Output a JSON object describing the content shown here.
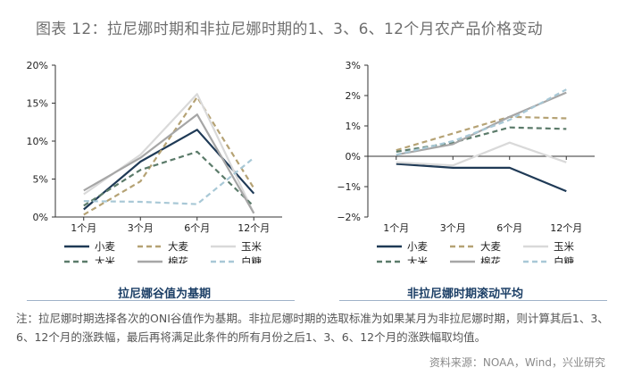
{
  "title": "图表 12：拉尼娜时期和非拉尼娜时期的1、3、6、12个月农产品价格变动",
  "note": "注：拉尼娜时期选择各次的ONI谷值作为基期。非拉尼娜时期的选取标准为如果某月为非拉尼娜时期，则计算其后1、3、6、12个月的涨跌幅，最后再将满足此条件的所有月份之后1、3、6、12个月的涨跌幅取均值。",
  "source": "资料来源：NOAA，Wind，兴业研究",
  "chart_data": [
    {
      "type": "line",
      "title": "拉尼娜谷值为基期",
      "categories": [
        "1个月",
        "3个月",
        "6个月",
        "12个月"
      ],
      "ylim": [
        0,
        20
      ],
      "yticks": [
        0,
        5,
        10,
        15,
        20
      ],
      "ytick_labels": [
        "0%",
        "5%",
        "10%",
        "15%",
        "20%"
      ],
      "legend_position": "bottom",
      "series": [
        {
          "name": "小麦",
          "color": "#1f3a56",
          "dash": "solid",
          "values": [
            1.0,
            7.3,
            11.5,
            3.1
          ]
        },
        {
          "name": "大麦",
          "color": "#b5a274",
          "dash": "dashed",
          "values": [
            0.3,
            4.7,
            15.8,
            3.8
          ]
        },
        {
          "name": "玉米",
          "color": "#d9d9d9",
          "dash": "solid",
          "values": [
            3.0,
            8.2,
            16.2,
            0.5
          ]
        },
        {
          "name": "大米",
          "color": "#5b7b6a",
          "dash": "dashed",
          "values": [
            1.5,
            6.2,
            8.6,
            1.4
          ]
        },
        {
          "name": "棉花",
          "color": "#a6a6a6",
          "dash": "solid",
          "values": [
            3.5,
            7.8,
            13.5,
            0.5
          ]
        },
        {
          "name": "白糖",
          "color": "#a8c8d6",
          "dash": "dashed",
          "values": [
            2.1,
            2.0,
            1.7,
            7.8
          ]
        }
      ]
    },
    {
      "type": "line",
      "title": "非拉尼娜时期滚动平均",
      "categories": [
        "1个月",
        "3个月",
        "6个月",
        "12个月"
      ],
      "ylim": [
        -2,
        3
      ],
      "yticks": [
        -2,
        -1,
        0,
        1,
        2,
        3
      ],
      "ytick_labels": [
        "−2%",
        "−1%",
        "0%",
        "1%",
        "2%",
        "3%"
      ],
      "legend_position": "bottom",
      "series": [
        {
          "name": "小麦",
          "color": "#1f3a56",
          "dash": "solid",
          "values": [
            -0.25,
            -0.38,
            -0.38,
            -1.15
          ]
        },
        {
          "name": "大麦",
          "color": "#b5a274",
          "dash": "dashed",
          "values": [
            0.2,
            0.75,
            1.3,
            1.25
          ]
        },
        {
          "name": "玉米",
          "color": "#d9d9d9",
          "dash": "solid",
          "values": [
            -0.2,
            -0.3,
            0.45,
            -0.2
          ]
        },
        {
          "name": "大米",
          "color": "#5b7b6a",
          "dash": "dashed",
          "values": [
            0.15,
            0.45,
            0.95,
            0.9
          ]
        },
        {
          "name": "棉花",
          "color": "#a6a6a6",
          "dash": "solid",
          "values": [
            0.05,
            0.4,
            1.3,
            2.1
          ]
        },
        {
          "name": "白糖",
          "color": "#a8c8d6",
          "dash": "dashed",
          "values": [
            0.05,
            0.5,
            1.2,
            2.2
          ]
        }
      ]
    }
  ]
}
